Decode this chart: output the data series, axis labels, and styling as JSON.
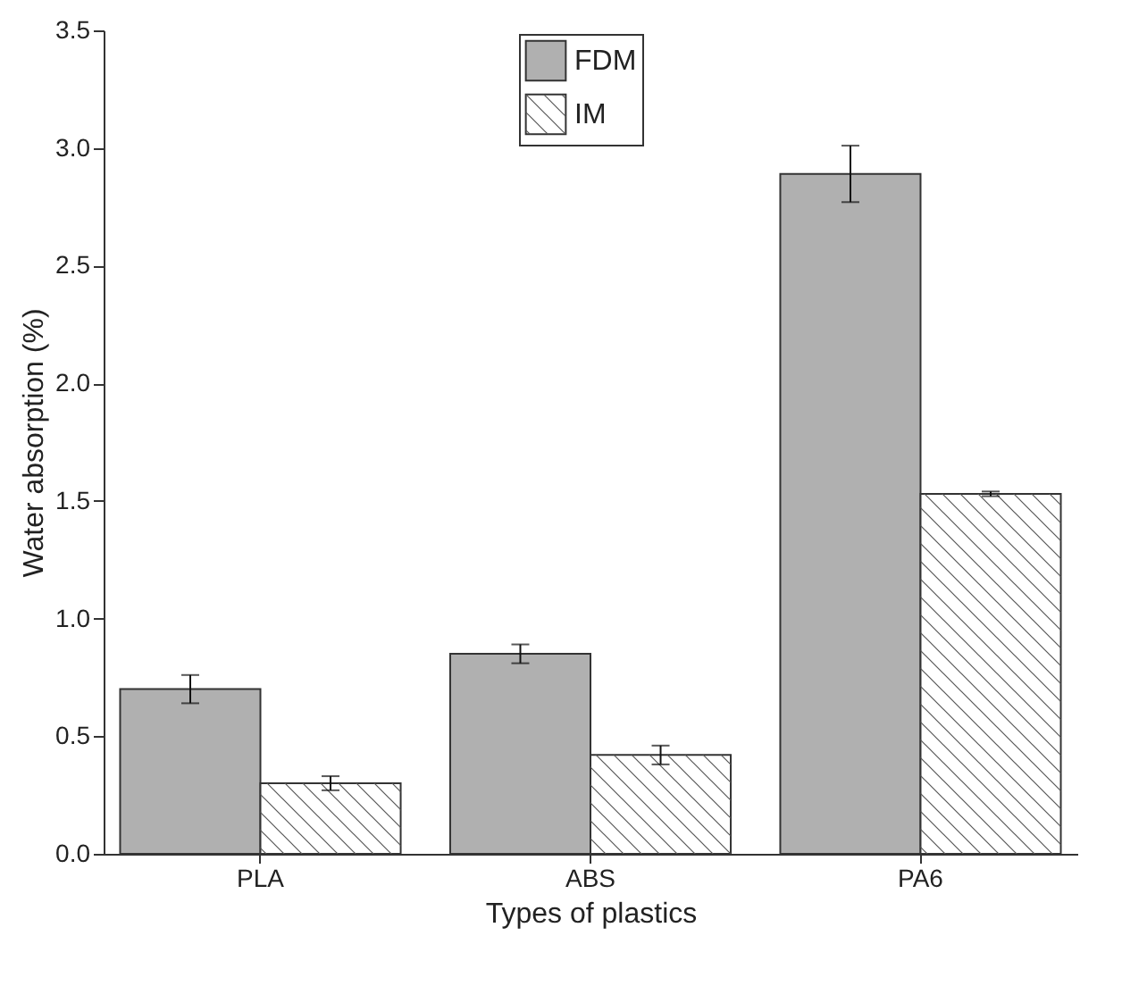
{
  "chart_data": {
    "type": "bar",
    "xlabel": "Types of plastics",
    "ylabel": "Water absorption (%)",
    "categories": [
      "PLA",
      "ABS",
      "PA6"
    ],
    "series": [
      {
        "name": "FDM",
        "color": "#b0b0b0",
        "values": [
          0.7,
          0.85,
          2.89
        ],
        "errors": [
          0.06,
          0.04,
          0.12
        ]
      },
      {
        "name": "IM",
        "color": "#ffffff",
        "values": [
          0.3,
          0.42,
          1.53
        ],
        "errors": [
          0.03,
          0.04,
          0.01
        ]
      }
    ],
    "ylim": [
      0,
      3.5
    ],
    "yticks": [
      {
        "value": 0,
        "label": "0.0"
      },
      0.5,
      {
        "value": 1,
        "label": "1.0"
      },
      1.5,
      {
        "value": 2,
        "label": "2.0"
      },
      2.5,
      {
        "value": 3,
        "label": "3.0"
      },
      3.5
    ],
    "grid": false,
    "legend": "top"
  }
}
